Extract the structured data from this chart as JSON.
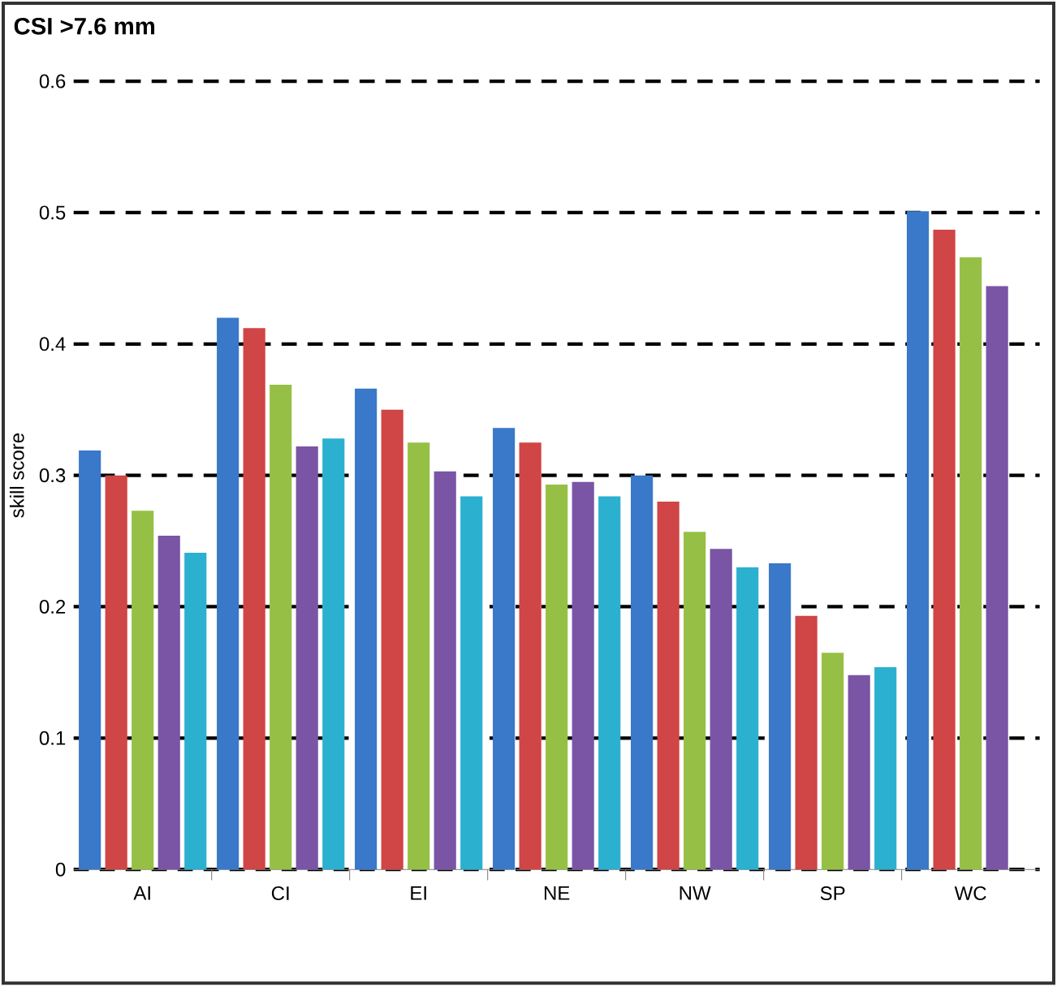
{
  "chart_data": {
    "type": "bar",
    "title": "CSI >7.6 mm",
    "ylabel": "skill score",
    "categories": [
      "AI",
      "CI",
      "EI",
      "NE",
      "NW",
      "SP",
      "WC"
    ],
    "series": [
      {
        "color": "#3a78c9",
        "values": [
          0.319,
          0.42,
          0.366,
          0.336,
          0.3,
          0.233,
          0.501
        ]
      },
      {
        "color": "#d04545",
        "values": [
          0.3,
          0.412,
          0.35,
          0.325,
          0.28,
          0.193,
          0.487
        ]
      },
      {
        "color": "#96c045",
        "values": [
          0.273,
          0.369,
          0.325,
          0.293,
          0.257,
          0.165,
          0.466
        ]
      },
      {
        "color": "#7a55a5",
        "values": [
          0.254,
          0.322,
          0.303,
          0.295,
          0.244,
          0.148,
          0.444
        ]
      },
      {
        "color": "#2bb0d0",
        "values": [
          0.241,
          0.328,
          0.284,
          0.284,
          0.23,
          0.154,
          null
        ]
      }
    ],
    "ylim": [
      0,
      0.6
    ],
    "yticks": [
      0,
      0.1,
      0.2,
      0.3,
      0.4,
      0.5,
      0.6
    ],
    "grid": "y"
  }
}
